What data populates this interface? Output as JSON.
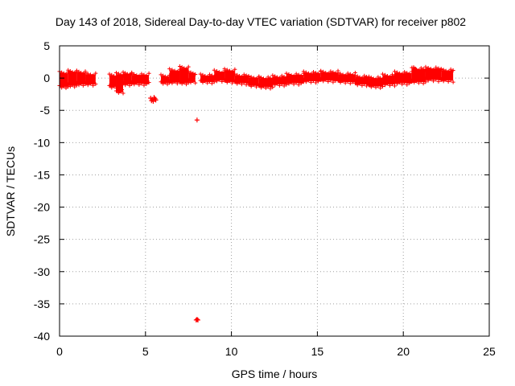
{
  "chart_data": {
    "type": "scatter",
    "title": "Day 143 of 2018, Sidereal Day-to-day VTEC variation (SDTVAR) for receiver p802",
    "xlabel": "GPS time / hours",
    "ylabel": "SDTVAR / TECUs",
    "xlim": [
      0,
      25
    ],
    "ylim": [
      -40,
      5
    ],
    "xticks": [
      0,
      5,
      10,
      15,
      20,
      25
    ],
    "yticks": [
      5,
      0,
      -5,
      -10,
      -15,
      -20,
      -25,
      -30,
      -35,
      -40
    ],
    "grid": true,
    "marker": "+",
    "series": [
      {
        "name": "SDTVAR",
        "color": "#ff0000",
        "bands": [
          {
            "x_start": 0.0,
            "x_end": 0.5,
            "y_top": 0.8,
            "y_bottom": -1.4
          },
          {
            "x_start": 0.5,
            "x_end": 1.0,
            "y_top": 1.0,
            "y_bottom": -1.2
          },
          {
            "x_start": 1.0,
            "x_end": 1.5,
            "y_top": 0.9,
            "y_bottom": -1.0
          },
          {
            "x_start": 1.5,
            "x_end": 2.1,
            "y_top": 0.6,
            "y_bottom": -1.0
          },
          {
            "x_start": 2.9,
            "x_end": 3.3,
            "y_top": 0.4,
            "y_bottom": -1.4
          },
          {
            "x_start": 3.3,
            "x_end": 3.7,
            "y_top": 0.6,
            "y_bottom": -2.2
          },
          {
            "x_start": 3.7,
            "x_end": 4.2,
            "y_top": 0.7,
            "y_bottom": -1.0
          },
          {
            "x_start": 4.2,
            "x_end": 5.2,
            "y_top": 0.5,
            "y_bottom": -0.9
          },
          {
            "x_start": 5.9,
            "x_end": 6.4,
            "y_top": 0.3,
            "y_bottom": -0.8
          },
          {
            "x_start": 6.4,
            "x_end": 7.0,
            "y_top": 1.2,
            "y_bottom": -0.7
          },
          {
            "x_start": 7.0,
            "x_end": 7.5,
            "y_top": 1.6,
            "y_bottom": -0.8
          },
          {
            "x_start": 7.5,
            "x_end": 7.9,
            "y_top": 0.8,
            "y_bottom": -0.6
          },
          {
            "x_start": 8.2,
            "x_end": 9.0,
            "y_top": 0.4,
            "y_bottom": -0.6
          },
          {
            "x_start": 9.0,
            "x_end": 9.6,
            "y_top": 1.0,
            "y_bottom": -0.4
          },
          {
            "x_start": 9.6,
            "x_end": 10.2,
            "y_top": 1.2,
            "y_bottom": -0.6
          },
          {
            "x_start": 10.2,
            "x_end": 11.0,
            "y_top": 0.4,
            "y_bottom": -0.8
          },
          {
            "x_start": 11.0,
            "x_end": 11.6,
            "y_top": 0.1,
            "y_bottom": -1.2
          },
          {
            "x_start": 11.6,
            "x_end": 12.4,
            "y_top": 0.0,
            "y_bottom": -1.4
          },
          {
            "x_start": 12.4,
            "x_end": 13.2,
            "y_top": 0.2,
            "y_bottom": -1.0
          },
          {
            "x_start": 13.2,
            "x_end": 14.2,
            "y_top": 0.5,
            "y_bottom": -0.8
          },
          {
            "x_start": 14.2,
            "x_end": 15.2,
            "y_top": 0.8,
            "y_bottom": -0.5
          },
          {
            "x_start": 15.2,
            "x_end": 16.2,
            "y_top": 0.9,
            "y_bottom": -0.4
          },
          {
            "x_start": 16.2,
            "x_end": 17.2,
            "y_top": 0.6,
            "y_bottom": -0.6
          },
          {
            "x_start": 17.2,
            "x_end": 18.0,
            "y_top": 0.2,
            "y_bottom": -1.0
          },
          {
            "x_start": 18.0,
            "x_end": 18.8,
            "y_top": 0.0,
            "y_bottom": -1.3
          },
          {
            "x_start": 18.8,
            "x_end": 19.5,
            "y_top": 0.4,
            "y_bottom": -1.0
          },
          {
            "x_start": 19.5,
            "x_end": 20.5,
            "y_top": 0.8,
            "y_bottom": -0.8
          },
          {
            "x_start": 20.5,
            "x_end": 21.3,
            "y_top": 1.4,
            "y_bottom": -0.6
          },
          {
            "x_start": 21.3,
            "x_end": 22.2,
            "y_top": 1.5,
            "y_bottom": -0.3
          },
          {
            "x_start": 22.2,
            "x_end": 22.9,
            "y_top": 1.2,
            "y_bottom": -0.4
          }
        ],
        "points": [
          {
            "x": 5.3,
            "y": -3.1
          },
          {
            "x": 5.4,
            "y": -3.3
          },
          {
            "x": 5.5,
            "y": -3.0
          },
          {
            "x": 5.6,
            "y": -3.4
          },
          {
            "x": 5.45,
            "y": -3.6
          },
          {
            "x": 5.35,
            "y": -3.5
          },
          {
            "x": 5.55,
            "y": -3.2
          },
          {
            "x": 8.0,
            "y": -6.5
          },
          {
            "x": 7.95,
            "y": -37.5
          },
          {
            "x": 8.05,
            "y": -37.5
          },
          {
            "x": 8.0,
            "y": -37.4
          },
          {
            "x": 20.6,
            "y": 1.6
          },
          {
            "x": 20.7,
            "y": 1.4
          },
          {
            "x": 3.5,
            "y": -2.0
          },
          {
            "x": 3.6,
            "y": -1.8
          }
        ]
      }
    ]
  }
}
